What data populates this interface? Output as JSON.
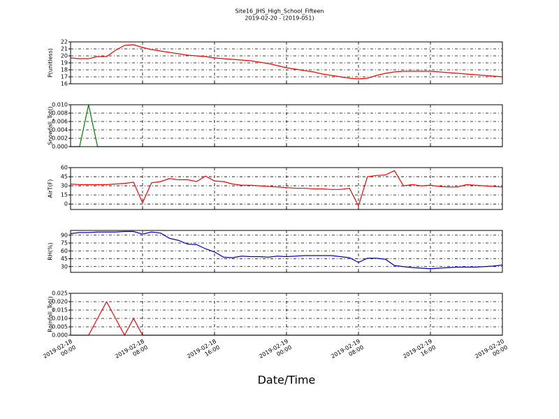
{
  "title": "Site16_JHS_High_School_Fifteen",
  "subtitle": "2019-02-20 - (2019-051)",
  "xlabel": "Date/Time",
  "chart_data": [
    {
      "type": "line",
      "ylabel": "P(unitless)",
      "color": "#ff0000",
      "x": [
        "2019-02-18 00:00",
        "2019-02-18 01:00",
        "2019-02-18 02:00",
        "2019-02-18 03:00",
        "2019-02-18 04:00",
        "2019-02-18 05:00",
        "2019-02-18 06:00",
        "2019-02-18 07:00",
        "2019-02-18 08:00",
        "2019-02-18 09:00",
        "2019-02-18 10:00",
        "2019-02-18 11:00",
        "2019-02-18 12:00",
        "2019-02-18 13:00",
        "2019-02-18 14:00",
        "2019-02-18 15:00",
        "2019-02-18 16:00",
        "2019-02-18 17:00",
        "2019-02-18 18:00",
        "2019-02-18 19:00",
        "2019-02-18 20:00",
        "2019-02-18 21:00",
        "2019-02-18 22:00",
        "2019-02-18 23:00",
        "2019-02-19 00:00",
        "2019-02-19 01:00",
        "2019-02-19 02:00",
        "2019-02-19 03:00",
        "2019-02-19 04:00",
        "2019-02-19 05:00",
        "2019-02-19 06:00",
        "2019-02-19 07:00",
        "2019-02-19 08:00",
        "2019-02-19 09:00",
        "2019-02-19 10:00",
        "2019-02-19 11:00",
        "2019-02-19 12:00",
        "2019-02-19 13:00",
        "2019-02-19 14:00",
        "2019-02-19 15:00",
        "2019-02-19 16:00",
        "2019-02-19 17:00",
        "2019-02-19 18:00",
        "2019-02-19 19:00",
        "2019-02-19 20:00",
        "2019-02-19 21:00",
        "2019-02-19 22:00",
        "2019-02-19 23:00",
        "2019-02-20 00:00"
      ],
      "values": [
        19.7,
        19.6,
        19.6,
        19.9,
        19.9,
        20.8,
        21.5,
        21.6,
        21.2,
        20.9,
        20.7,
        20.5,
        20.3,
        20.1,
        20.0,
        19.9,
        19.7,
        19.6,
        19.5,
        19.4,
        19.3,
        19.1,
        18.9,
        18.6,
        18.3,
        18.1,
        17.9,
        17.7,
        17.4,
        17.2,
        17.0,
        16.8,
        16.7,
        16.8,
        17.2,
        17.5,
        17.7,
        17.8,
        17.8,
        17.8,
        17.8,
        17.7,
        17.6,
        17.5,
        17.4,
        17.3,
        17.2,
        17.1,
        17.0
      ],
      "xlim": [
        "2019-02-18 00:00",
        "2019-02-20 00:00"
      ],
      "ylim": [
        16,
        22
      ],
      "yticks": [
        16,
        17,
        18,
        19,
        20,
        21,
        22
      ],
      "grid": true
    },
    {
      "type": "line",
      "ylabel": "Snowfall_Tot()",
      "color": "#008000",
      "x": [
        "2019-02-18 00:00",
        "2019-02-18 01:00",
        "2019-02-18 02:00",
        "2019-02-18 03:00",
        "2019-02-18 04:00",
        "2019-02-18 05:00",
        "2019-02-18 06:00",
        "2019-02-18 07:00",
        "2019-02-18 08:00",
        "2019-02-18 09:00",
        "2019-02-18 10:00",
        "2019-02-18 11:00",
        "2019-02-18 12:00",
        "2019-02-18 13:00",
        "2019-02-18 14:00",
        "2019-02-18 15:00",
        "2019-02-18 16:00",
        "2019-02-18 17:00",
        "2019-02-18 18:00",
        "2019-02-18 19:00",
        "2019-02-18 20:00",
        "2019-02-18 21:00",
        "2019-02-18 22:00",
        "2019-02-18 23:00",
        "2019-02-19 00:00",
        "2019-02-19 01:00",
        "2019-02-19 02:00",
        "2019-02-19 03:00",
        "2019-02-19 04:00",
        "2019-02-19 05:00",
        "2019-02-19 06:00",
        "2019-02-19 07:00",
        "2019-02-19 08:00",
        "2019-02-19 09:00",
        "2019-02-19 10:00",
        "2019-02-19 11:00",
        "2019-02-19 12:00",
        "2019-02-19 13:00",
        "2019-02-19 14:00",
        "2019-02-19 15:00",
        "2019-02-19 16:00",
        "2019-02-19 17:00",
        "2019-02-19 18:00",
        "2019-02-19 19:00",
        "2019-02-19 20:00",
        "2019-02-19 21:00",
        "2019-02-19 22:00",
        "2019-02-19 23:00",
        "2019-02-20 00:00"
      ],
      "values": [
        0,
        0,
        0.01,
        0,
        0,
        0,
        0,
        0,
        0,
        0,
        0,
        0,
        0,
        0,
        0,
        0,
        0,
        0,
        0,
        0,
        0,
        0,
        0,
        0,
        0,
        0,
        0,
        0,
        0,
        0,
        0,
        0,
        0,
        0,
        0,
        0,
        0,
        0,
        0,
        0,
        0,
        0,
        0,
        0,
        0,
        0,
        0,
        0,
        0
      ],
      "xlim": [
        "2019-02-18 00:00",
        "2019-02-20 00:00"
      ],
      "ylim": [
        0,
        0.01
      ],
      "yticks": [
        {
          "value": 0,
          "label": "0.000"
        },
        {
          "value": 0.002,
          "label": "0.002"
        },
        {
          "value": 0.004,
          "label": "0.004"
        },
        {
          "value": 0.006,
          "label": "0.006"
        },
        {
          "value": 0.008,
          "label": "0.008"
        },
        {
          "value": 0.01,
          "label": "0.010"
        }
      ],
      "grid": true
    },
    {
      "type": "line",
      "ylabel": "AirT(F)",
      "color": "#ff0000",
      "x": [
        "2019-02-18 00:00",
        "2019-02-18 01:00",
        "2019-02-18 02:00",
        "2019-02-18 03:00",
        "2019-02-18 04:00",
        "2019-02-18 05:00",
        "2019-02-18 06:00",
        "2019-02-18 07:00",
        "2019-02-18 08:00",
        "2019-02-18 09:00",
        "2019-02-18 10:00",
        "2019-02-18 11:00",
        "2019-02-18 12:00",
        "2019-02-18 13:00",
        "2019-02-18 14:00",
        "2019-02-18 15:00",
        "2019-02-18 16:00",
        "2019-02-18 17:00",
        "2019-02-18 18:00",
        "2019-02-18 19:00",
        "2019-02-18 20:00",
        "2019-02-18 21:00",
        "2019-02-18 22:00",
        "2019-02-18 23:00",
        "2019-02-19 00:00",
        "2019-02-19 01:00",
        "2019-02-19 02:00",
        "2019-02-19 03:00",
        "2019-02-19 04:00",
        "2019-02-19 05:00",
        "2019-02-19 06:00",
        "2019-02-19 07:00",
        "2019-02-19 08:00",
        "2019-02-19 09:00",
        "2019-02-19 10:00",
        "2019-02-19 11:00",
        "2019-02-19 12:00",
        "2019-02-19 13:00",
        "2019-02-19 14:00",
        "2019-02-19 15:00",
        "2019-02-19 16:00",
        "2019-02-19 17:00",
        "2019-02-19 18:00",
        "2019-02-19 19:00",
        "2019-02-19 20:00",
        "2019-02-19 21:00",
        "2019-02-19 22:00",
        "2019-02-19 23:00",
        "2019-02-20 00:00"
      ],
      "values": [
        33,
        32,
        32,
        32,
        32,
        33,
        34,
        36,
        2,
        35,
        37,
        42,
        40,
        40,
        37,
        46,
        38,
        37,
        33,
        31,
        31,
        30,
        29,
        28,
        27,
        26,
        26,
        25,
        25,
        24,
        24,
        26,
        -3,
        45,
        47,
        48,
        55,
        30,
        32,
        30,
        31,
        29,
        28,
        28,
        32,
        31,
        30,
        29,
        28
      ],
      "xlim": [
        "2019-02-18 00:00",
        "2019-02-20 00:00"
      ],
      "ylim": [
        -9,
        60
      ],
      "yticks": [
        0,
        15,
        30,
        45,
        60
      ],
      "grid": true
    },
    {
      "type": "line",
      "ylabel": "RH(%)",
      "color": "#0000cc",
      "x": [
        "2019-02-18 00:00",
        "2019-02-18 01:00",
        "2019-02-18 02:00",
        "2019-02-18 03:00",
        "2019-02-18 04:00",
        "2019-02-18 05:00",
        "2019-02-18 06:00",
        "2019-02-18 07:00",
        "2019-02-18 08:00",
        "2019-02-18 09:00",
        "2019-02-18 10:00",
        "2019-02-18 11:00",
        "2019-02-18 12:00",
        "2019-02-18 13:00",
        "2019-02-18 14:00",
        "2019-02-18 15:00",
        "2019-02-18 16:00",
        "2019-02-18 17:00",
        "2019-02-18 18:00",
        "2019-02-18 19:00",
        "2019-02-18 20:00",
        "2019-02-18 21:00",
        "2019-02-18 22:00",
        "2019-02-18 23:00",
        "2019-02-19 00:00",
        "2019-02-19 01:00",
        "2019-02-19 02:00",
        "2019-02-19 03:00",
        "2019-02-19 04:00",
        "2019-02-19 05:00",
        "2019-02-19 06:00",
        "2019-02-19 07:00",
        "2019-02-19 08:00",
        "2019-02-19 09:00",
        "2019-02-19 10:00",
        "2019-02-19 11:00",
        "2019-02-19 12:00",
        "2019-02-19 13:00",
        "2019-02-19 14:00",
        "2019-02-19 15:00",
        "2019-02-19 16:00",
        "2019-02-19 17:00",
        "2019-02-19 18:00",
        "2019-02-19 19:00",
        "2019-02-19 20:00",
        "2019-02-19 21:00",
        "2019-02-19 22:00",
        "2019-02-19 23:00",
        "2019-02-20 00:00"
      ],
      "values": [
        93,
        95,
        95,
        96,
        96,
        96,
        97,
        97,
        92,
        96,
        94,
        84,
        80,
        73,
        72,
        64,
        58,
        48,
        47,
        50,
        49,
        49,
        48,
        50,
        49,
        50,
        51,
        51,
        51,
        51,
        49,
        47,
        38,
        46,
        46,
        44,
        32,
        30,
        28,
        27,
        26,
        27,
        28,
        29,
        29,
        29,
        30,
        31,
        33
      ],
      "xlim": [
        "2019-02-18 00:00",
        "2019-02-20 00:00"
      ],
      "ylim": [
        19,
        99
      ],
      "yticks": [
        30,
        45,
        60,
        75,
        90
      ],
      "grid": true
    },
    {
      "type": "line",
      "ylabel": "Rainfall_Tot()",
      "color": "#ff0000",
      "x": [
        "2019-02-18 00:00",
        "2019-02-18 01:00",
        "2019-02-18 02:00",
        "2019-02-18 03:00",
        "2019-02-18 04:00",
        "2019-02-18 05:00",
        "2019-02-18 06:00",
        "2019-02-18 07:00",
        "2019-02-18 08:00",
        "2019-02-18 09:00",
        "2019-02-18 10:00",
        "2019-02-18 11:00",
        "2019-02-18 12:00",
        "2019-02-18 13:00",
        "2019-02-18 14:00",
        "2019-02-18 15:00",
        "2019-02-18 16:00",
        "2019-02-18 17:00",
        "2019-02-18 18:00",
        "2019-02-18 19:00",
        "2019-02-18 20:00",
        "2019-02-18 21:00",
        "2019-02-18 22:00",
        "2019-02-18 23:00",
        "2019-02-19 00:00",
        "2019-02-19 01:00",
        "2019-02-19 02:00",
        "2019-02-19 03:00",
        "2019-02-19 04:00",
        "2019-02-19 05:00",
        "2019-02-19 06:00",
        "2019-02-19 07:00",
        "2019-02-19 08:00",
        "2019-02-19 09:00",
        "2019-02-19 10:00",
        "2019-02-19 11:00",
        "2019-02-19 12:00",
        "2019-02-19 13:00",
        "2019-02-19 14:00",
        "2019-02-19 15:00",
        "2019-02-19 16:00",
        "2019-02-19 17:00",
        "2019-02-19 18:00",
        "2019-02-19 19:00",
        "2019-02-19 20:00",
        "2019-02-19 21:00",
        "2019-02-19 22:00",
        "2019-02-19 23:00",
        "2019-02-20 00:00"
      ],
      "values": [
        0,
        0,
        0,
        0.01,
        0.02,
        0.01,
        0,
        0.01,
        0,
        0,
        0,
        0,
        0,
        0,
        0,
        0,
        0,
        0,
        0,
        0,
        0,
        0,
        0,
        0,
        0,
        0,
        0,
        0,
        0,
        0,
        0,
        0,
        0,
        0,
        0,
        0,
        0,
        0,
        0,
        0,
        0,
        0,
        0,
        0,
        0,
        0,
        0,
        0,
        0
      ],
      "xlim": [
        "2019-02-18 00:00",
        "2019-02-20 00:00"
      ],
      "ylim": [
        0,
        0.025
      ],
      "yticks": [
        {
          "value": 0,
          "label": "0.000"
        },
        {
          "value": 0.005,
          "label": "0.005"
        },
        {
          "value": 0.01,
          "label": "0.010"
        },
        {
          "value": 0.015,
          "label": "0.015"
        },
        {
          "value": 0.02,
          "label": "0.020"
        },
        {
          "value": 0.025,
          "label": "0.025"
        }
      ],
      "xticks": [
        {
          "value": "2019-02-18 00:00",
          "label": "2019-02-18\n00:00"
        },
        {
          "value": "2019-02-18 08:00",
          "label": "2019-02-18\n08:00"
        },
        {
          "value": "2019-02-18 16:00",
          "label": "2019-02-18\n16:00"
        },
        {
          "value": "2019-02-19 00:00",
          "label": "2019-02-19\n00:00"
        },
        {
          "value": "2019-02-19 08:00",
          "label": "2019-02-19\n08:00"
        },
        {
          "value": "2019-02-19 16:00",
          "label": "2019-02-19\n16:00"
        },
        {
          "value": "2019-02-20 00:00",
          "label": "2019-02-20\n00:00"
        }
      ],
      "grid": true
    }
  ]
}
